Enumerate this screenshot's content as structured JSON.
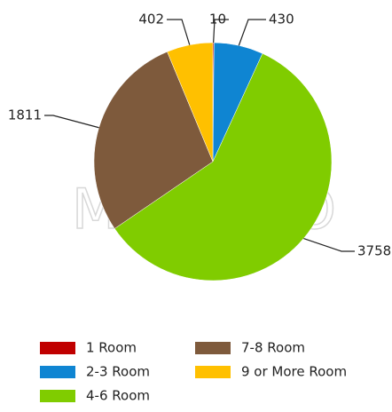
{
  "chart_data": {
    "type": "pie",
    "watermark": "MOVOTO",
    "categories": [
      "1 Room",
      "2-3 Room",
      "4-6 Room",
      "7-8 Room",
      "9 or More Room"
    ],
    "values": [
      10,
      430,
      3758,
      1811,
      402
    ],
    "colors": [
      "#c00000",
      "#0f85d2",
      "#80cc00",
      "#7e5a3c",
      "#ffc000"
    ],
    "legend": "bottom"
  }
}
